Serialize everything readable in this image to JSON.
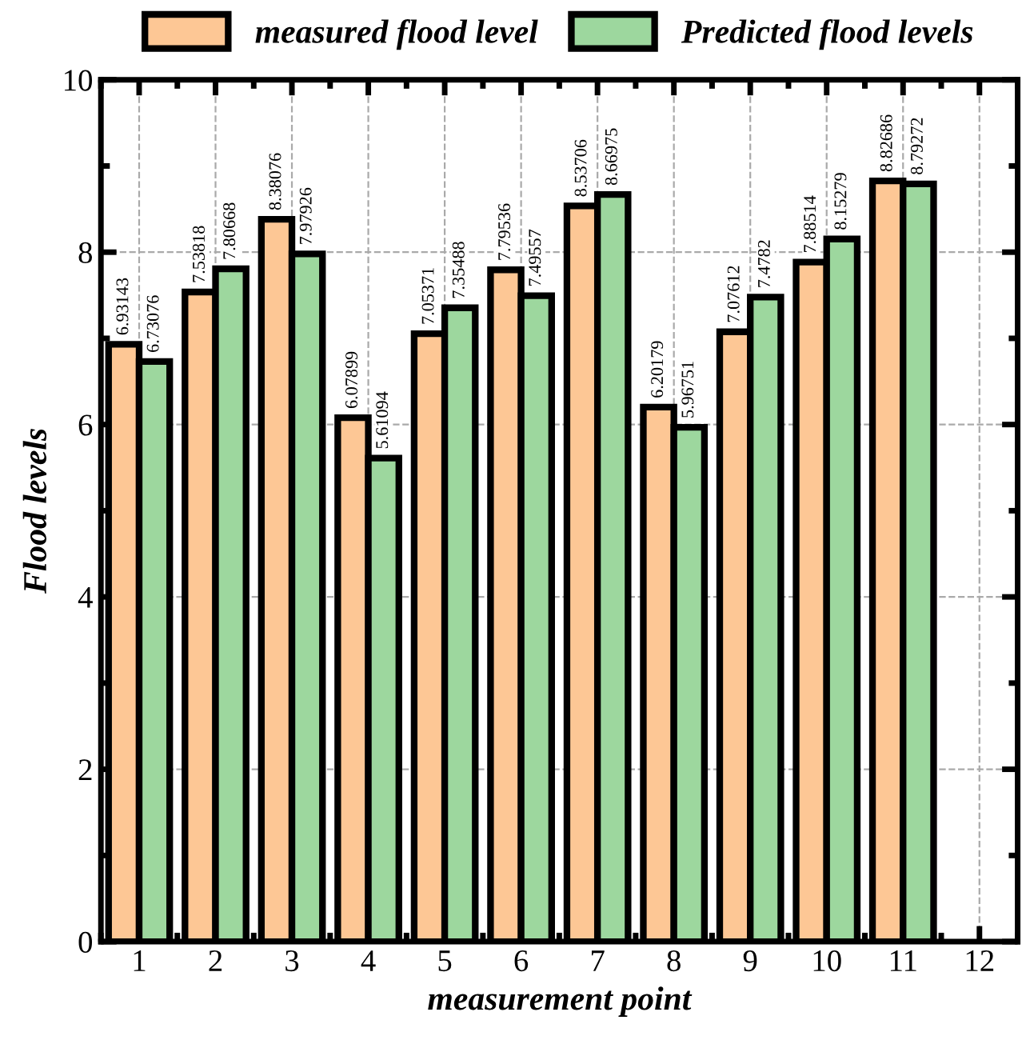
{
  "chart_data": {
    "type": "bar",
    "xlabel": "measurement point",
    "ylabel": "Flood levels",
    "x": [
      1,
      2,
      3,
      4,
      5,
      6,
      7,
      8,
      9,
      10,
      11
    ],
    "series": [
      {
        "name": "measured flood level",
        "color": "#fdc795",
        "values": [
          6.93143,
          7.53818,
          8.38076,
          6.07899,
          7.05371,
          7.79536,
          8.53706,
          6.20179,
          7.07612,
          7.88514,
          8.82686
        ]
      },
      {
        "name": "Predicted flood levels",
        "color": "#9dd79e",
        "values": [
          6.73076,
          7.80668,
          7.97926,
          5.61094,
          7.35488,
          7.49557,
          8.66975,
          5.96751,
          7.4782,
          8.15279,
          8.79272
        ]
      }
    ],
    "xlim": [
      0.5,
      12.5
    ],
    "xticks": [
      1,
      2,
      3,
      4,
      5,
      6,
      7,
      8,
      9,
      10,
      11,
      12
    ],
    "ylim": [
      0,
      10
    ],
    "yticks": [
      0,
      2,
      4,
      6,
      8,
      10
    ],
    "grid": true,
    "legend": "top",
    "data_labels": true
  }
}
